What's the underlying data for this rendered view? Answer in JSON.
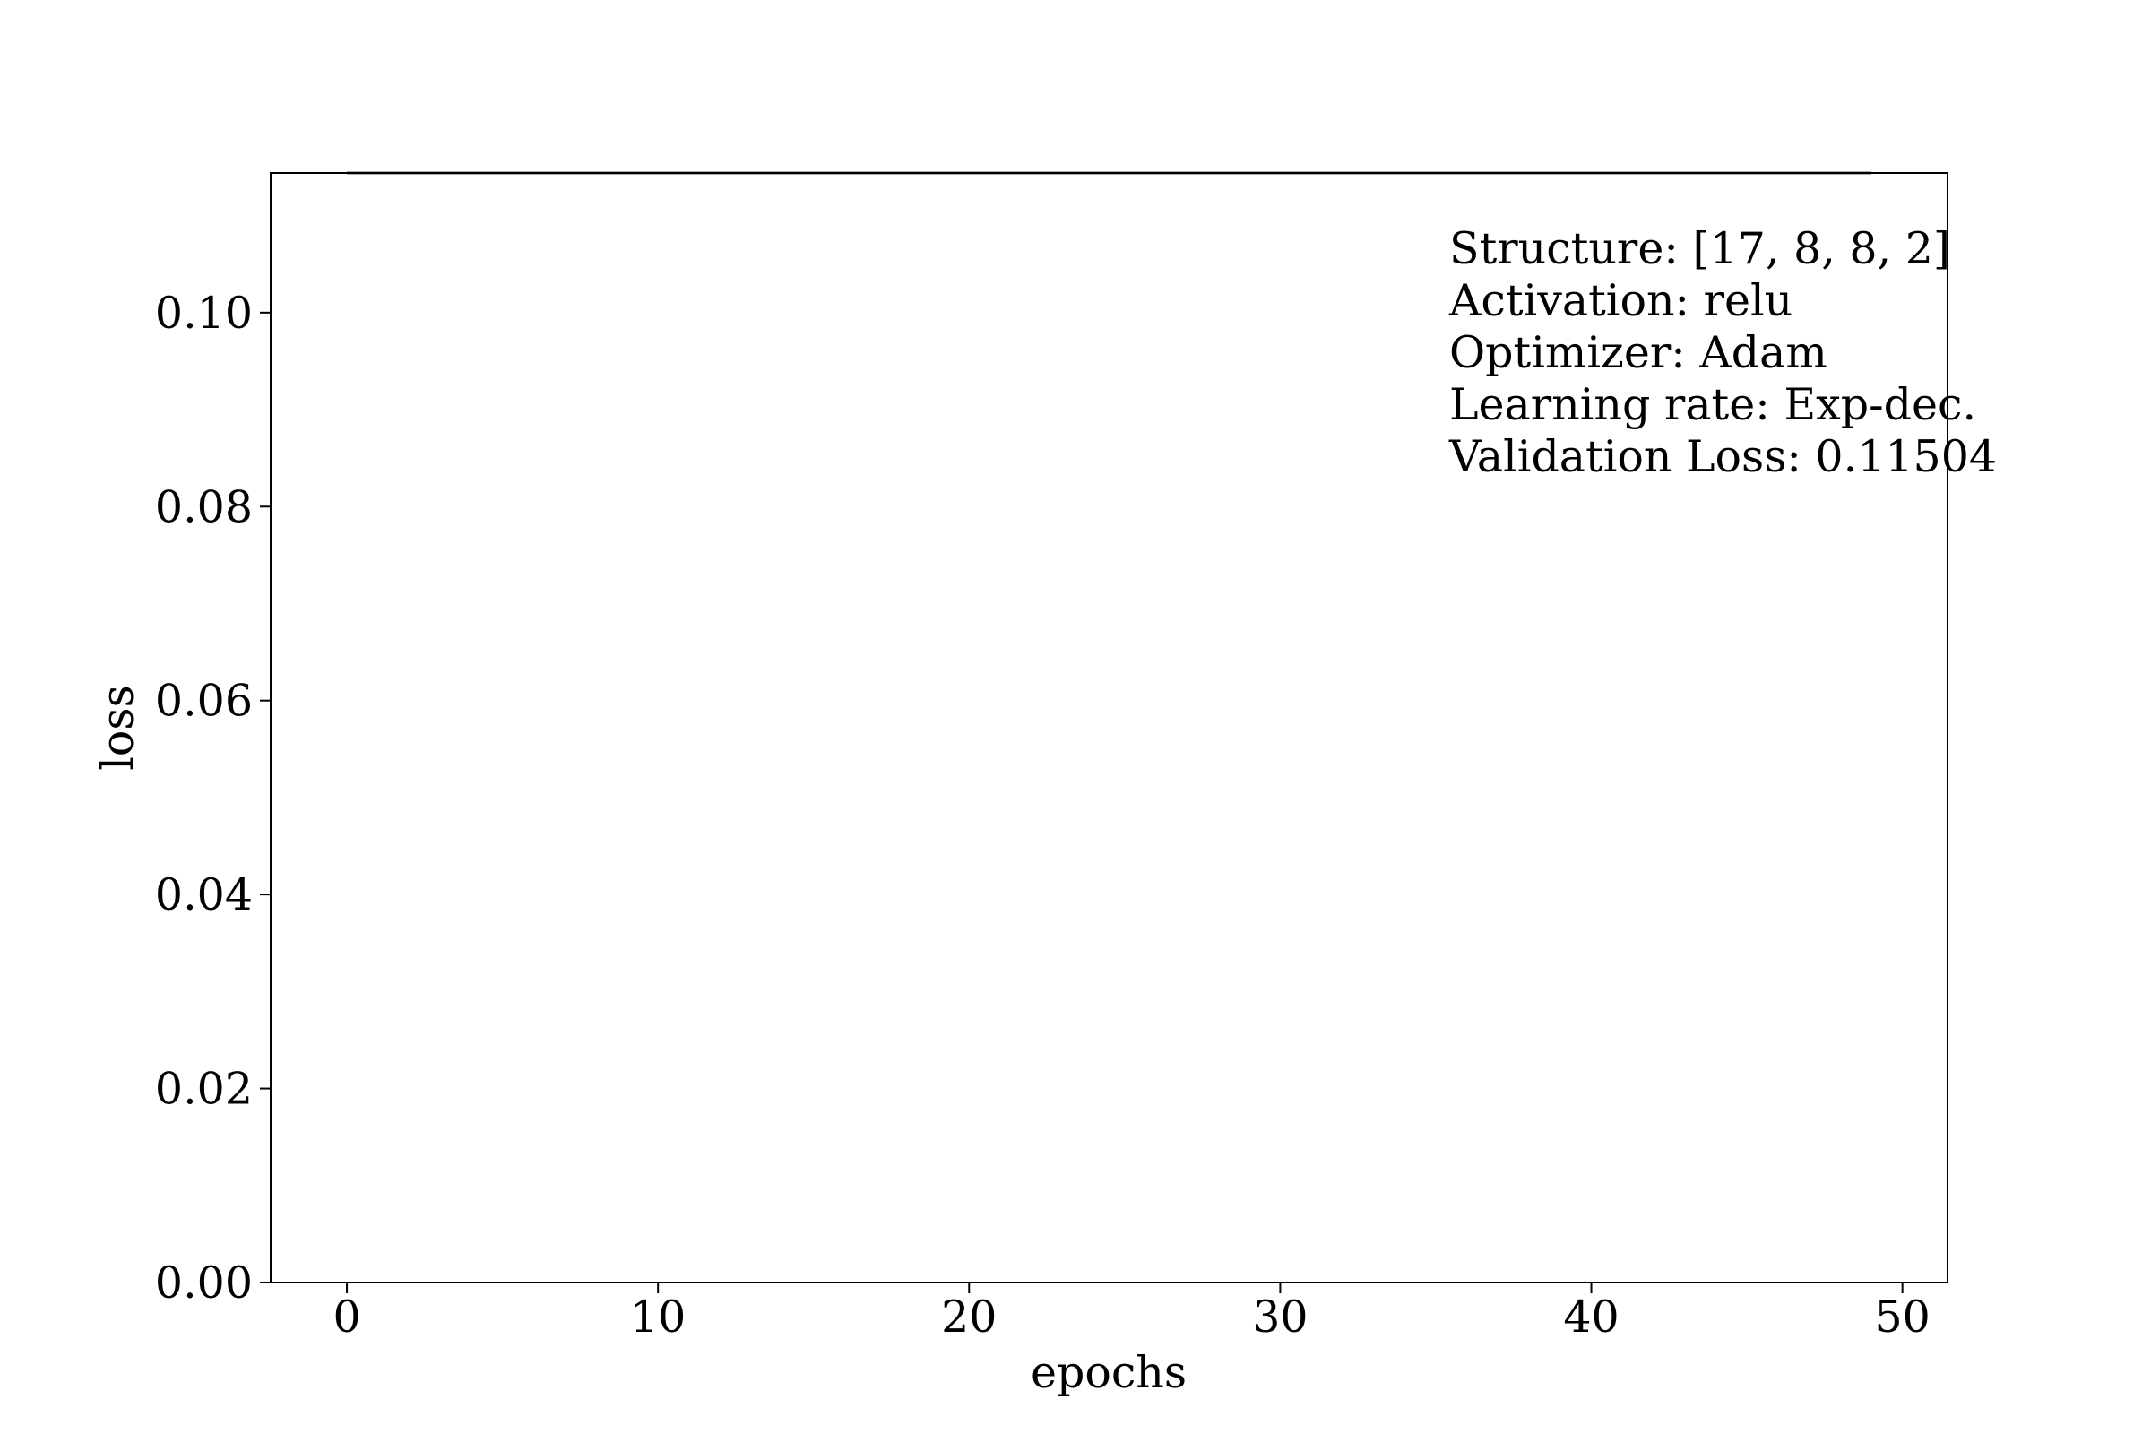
{
  "chart_data": {
    "type": "line",
    "title": "",
    "xlabel": "epochs",
    "ylabel": "loss",
    "xlim": [
      -2.45,
      51.45
    ],
    "ylim": [
      0.0,
      0.1144
    ],
    "x_ticks": [
      0,
      10,
      20,
      30,
      40,
      50
    ],
    "x_tick_labels": [
      "0",
      "10",
      "20",
      "30",
      "40",
      "50"
    ],
    "y_ticks": [
      0.0,
      0.02,
      0.04,
      0.06,
      0.08,
      0.1
    ],
    "y_tick_labels": [
      "0.00",
      "0.02",
      "0.04",
      "0.06",
      "0.08",
      "0.10"
    ],
    "grid": false,
    "series": [
      {
        "color": "#1f77b4",
        "x": [
          0,
          49
        ],
        "y": [
          0.1144,
          0.1144
        ]
      },
      {
        "color": "#000000",
        "x": [
          0,
          49
        ],
        "y": [
          0.1144,
          0.1144
        ]
      }
    ],
    "annotation_lines": [
      "Structure: [17, 8, 8, 2]",
      "Activation: relu",
      "Optimizer: Adam",
      "Learning rate: Exp-dec.",
      "Validation Loss: 0.11504"
    ]
  }
}
